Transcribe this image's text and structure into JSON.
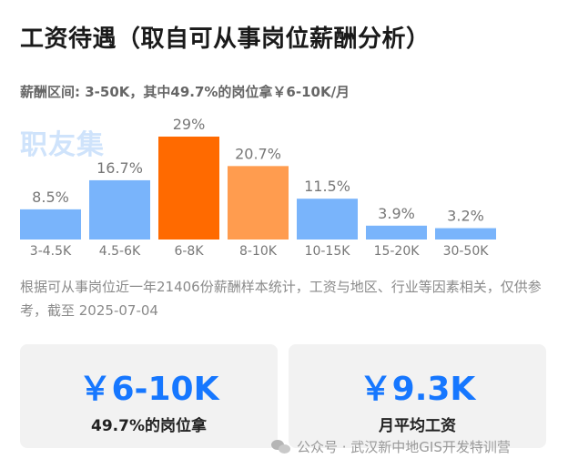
{
  "header": {
    "title": "工资待遇（取自可从事岗位薪酬分析）",
    "subtitle": "薪酬区间: 3-50K，其中49.7%的岗位拿￥6-10K/月",
    "logo_text": "职友集"
  },
  "chart_data": {
    "type": "bar",
    "categories": [
      "3-4.5K",
      "4.5-6K",
      "6-8K",
      "8-10K",
      "10-15K",
      "15-20K",
      "30-50K"
    ],
    "values": [
      8.5,
      16.7,
      29,
      20.7,
      11.5,
      3.9,
      3.2
    ],
    "value_labels": [
      "8.5%",
      "16.7%",
      "29%",
      "20.7%",
      "11.5%",
      "3.9%",
      "3.2%"
    ],
    "colors": [
      "#79b4fb",
      "#79b4fb",
      "#ff6a00",
      "#ff9c4f",
      "#79b4fb",
      "#79b4fb",
      "#79b4fb"
    ],
    "ylim": [
      0,
      29
    ]
  },
  "note": "根据可从事岗位近一年21406份薪酬样本统计，工资与地区、行业等因素相关，仅供参考，截至 2025-07-04",
  "cards": {
    "left": {
      "value": "￥6-10K",
      "label": "49.7%的岗位拿"
    },
    "right": {
      "value": "￥9.3K",
      "label": "月平均工资"
    }
  },
  "footer": {
    "icon": "wechat-icon",
    "text": "公众号 · 武汉新中地GIS开发特训营"
  },
  "colors": {
    "accent": "#1677ff",
    "bar_default": "#79b4fb",
    "bar_highlight": "#ff6a00",
    "bar_secondary": "#ff9c4f"
  }
}
